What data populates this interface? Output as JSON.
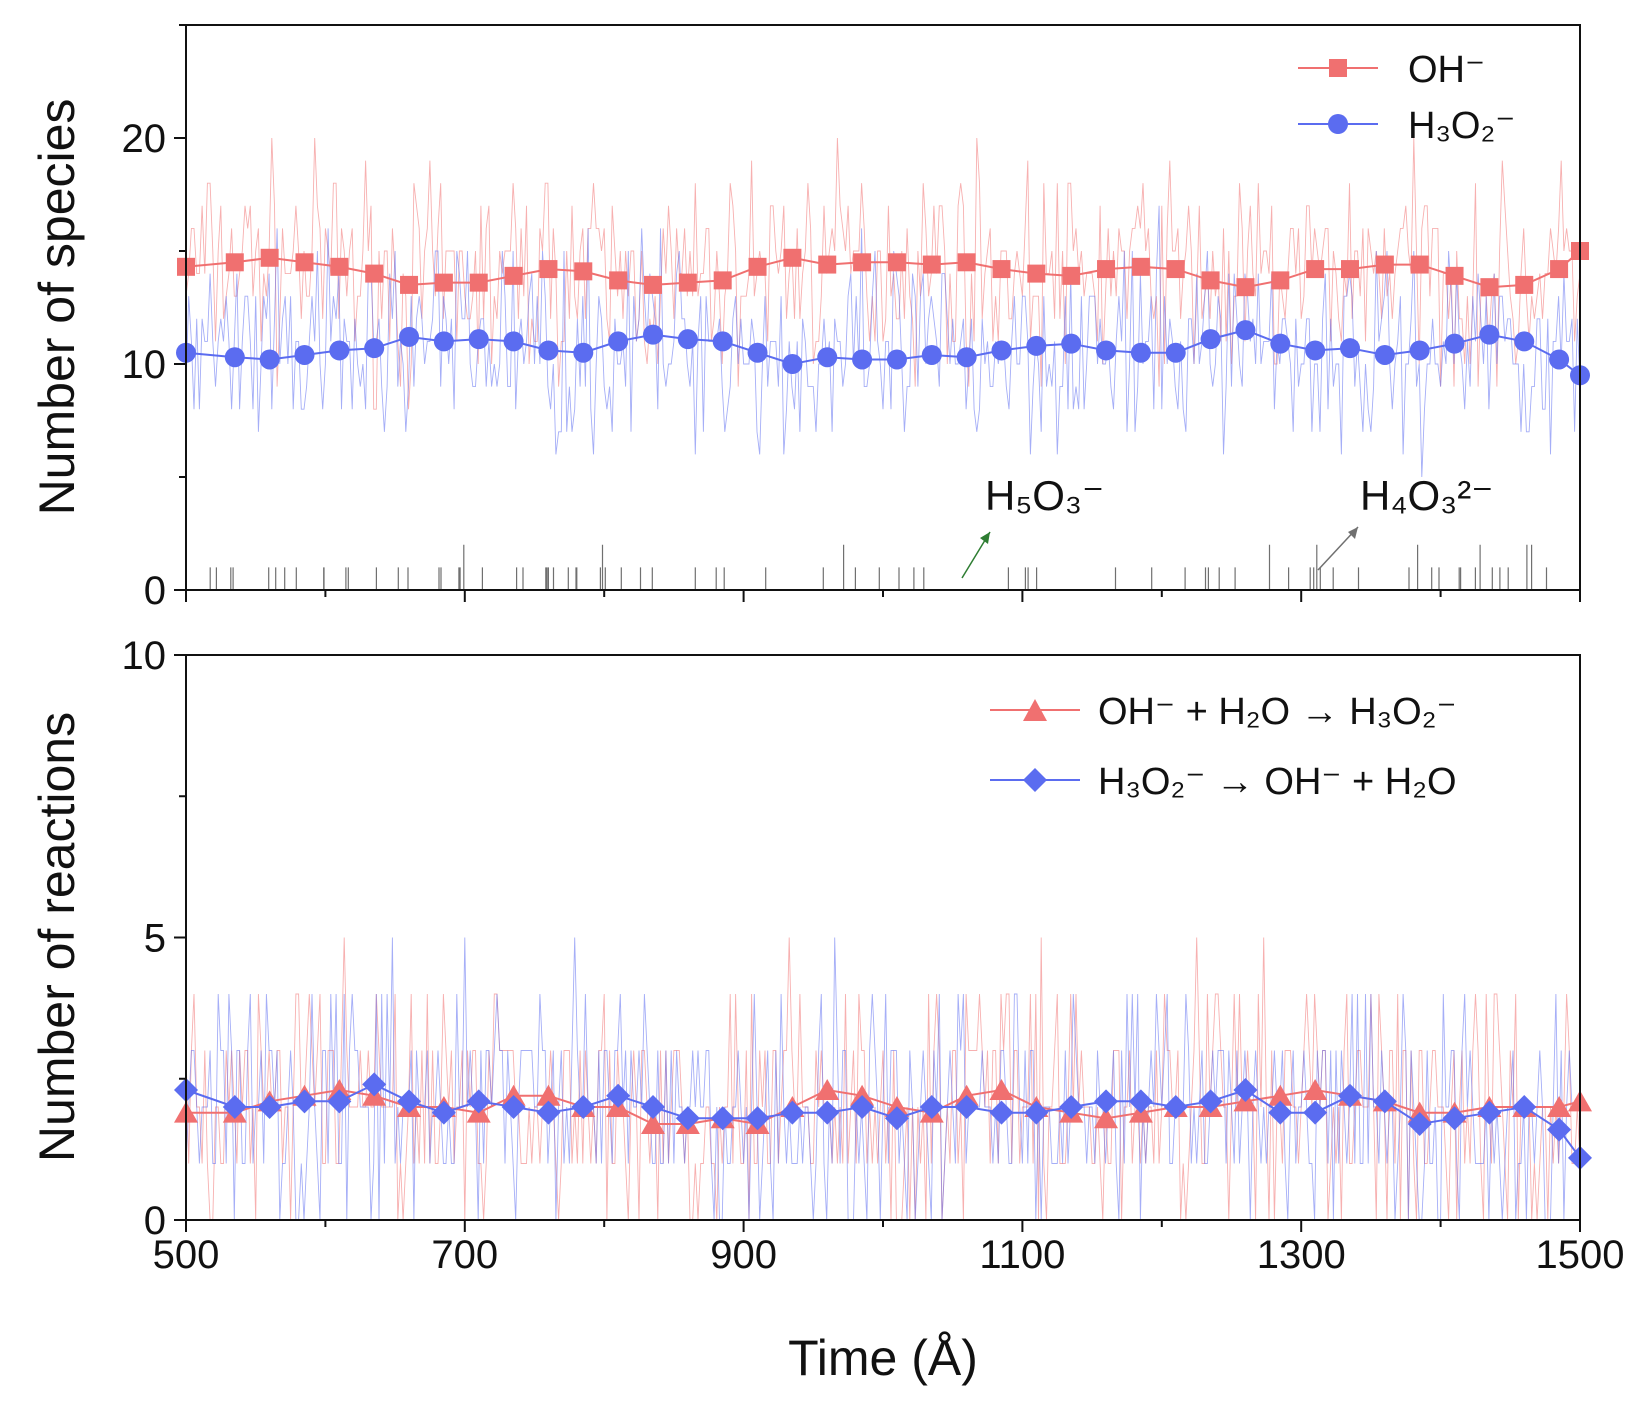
{
  "colors": {
    "oh": "#f07070",
    "h3o2": "#5b6cf0",
    "h5o3": "#2e7d32",
    "h4o3": "#707070",
    "axis": "#111111"
  },
  "xaxis": {
    "label": "Time (Å)",
    "range": [
      500,
      1500
    ],
    "ticks": [
      "500",
      "700",
      "900",
      "1100",
      "1300",
      "1500"
    ]
  },
  "annotations": {
    "h5o3": "H₅O₃⁻",
    "h4o3": "H₄O₃²⁻"
  },
  "chart_data": [
    {
      "type": "line",
      "ylabel": "Number of species",
      "ylim": [
        0,
        25
      ],
      "yticks": [
        "0",
        "10",
        "20"
      ],
      "legend": "top-right",
      "series": [
        {
          "name": "OH⁻",
          "marker": "square",
          "x": [
            500,
            535,
            560,
            585,
            610,
            635,
            660,
            685,
            710,
            735,
            760,
            785,
            810,
            835,
            860,
            885,
            910,
            935,
            960,
            985,
            1010,
            1035,
            1060,
            1085,
            1110,
            1135,
            1160,
            1185,
            1210,
            1235,
            1260,
            1285,
            1310,
            1335,
            1360,
            1385,
            1410,
            1435,
            1460,
            1485,
            1500
          ],
          "values": [
            14.3,
            14.5,
            14.7,
            14.5,
            14.3,
            14.0,
            13.5,
            13.6,
            13.6,
            13.9,
            14.2,
            14.1,
            13.7,
            13.5,
            13.6,
            13.7,
            14.3,
            14.7,
            14.4,
            14.5,
            14.5,
            14.4,
            14.5,
            14.2,
            14.0,
            13.9,
            14.2,
            14.3,
            14.2,
            13.7,
            13.4,
            13.7,
            14.2,
            14.2,
            14.4,
            14.4,
            13.9,
            13.4,
            13.5,
            14.2,
            15.0
          ]
        },
        {
          "name": "H₃O₂⁻",
          "marker": "circle",
          "x": [
            500,
            535,
            560,
            585,
            610,
            635,
            660,
            685,
            710,
            735,
            760,
            785,
            810,
            835,
            860,
            885,
            910,
            935,
            960,
            985,
            1010,
            1035,
            1060,
            1085,
            1110,
            1135,
            1160,
            1185,
            1210,
            1235,
            1260,
            1285,
            1310,
            1335,
            1360,
            1385,
            1410,
            1435,
            1460,
            1485,
            1500
          ],
          "values": [
            10.5,
            10.3,
            10.2,
            10.4,
            10.6,
            10.7,
            11.2,
            11.0,
            11.1,
            11.0,
            10.6,
            10.5,
            11.0,
            11.3,
            11.1,
            11.0,
            10.5,
            10.0,
            10.3,
            10.2,
            10.2,
            10.4,
            10.3,
            10.6,
            10.8,
            10.9,
            10.6,
            10.5,
            10.5,
            11.1,
            11.5,
            10.9,
            10.6,
            10.7,
            10.4,
            10.6,
            10.9,
            11.3,
            11.0,
            10.2,
            9.5
          ]
        },
        {
          "name": "H₅O₃⁻",
          "marker": "none",
          "x": [
            500,
            1500
          ],
          "values": [
            0,
            0
          ]
        },
        {
          "name": "H₄O₃²⁻",
          "marker": "none",
          "x": [
            500,
            1500
          ],
          "values": [
            0,
            0
          ]
        }
      ]
    },
    {
      "type": "line",
      "ylabel": "Number of reactions",
      "ylim": [
        0,
        10
      ],
      "yticks": [
        "0",
        "5",
        "10"
      ],
      "legend": "top-right",
      "series": [
        {
          "name": "OH⁻ + H₂O → H₃O₂⁻",
          "marker": "triangle",
          "x": [
            500,
            535,
            560,
            585,
            610,
            635,
            660,
            685,
            710,
            735,
            760,
            785,
            810,
            835,
            860,
            885,
            910,
            935,
            960,
            985,
            1010,
            1035,
            1060,
            1085,
            1110,
            1135,
            1160,
            1185,
            1210,
            1235,
            1260,
            1285,
            1310,
            1335,
            1360,
            1385,
            1410,
            1435,
            1460,
            1485,
            1500
          ],
          "values": [
            1.9,
            1.9,
            2.1,
            2.2,
            2.3,
            2.2,
            2.0,
            2.0,
            1.9,
            2.2,
            2.2,
            2.0,
            2.0,
            1.7,
            1.7,
            1.8,
            1.7,
            2.0,
            2.3,
            2.2,
            2.0,
            1.9,
            2.2,
            2.3,
            2.0,
            1.9,
            1.8,
            1.9,
            2.0,
            2.0,
            2.1,
            2.2,
            2.3,
            2.2,
            2.1,
            1.9,
            1.9,
            2.0,
            2.0,
            2.0,
            2.1
          ]
        },
        {
          "name": "H₃O₂⁻ → OH⁻ + H₂O",
          "marker": "diamond",
          "x": [
            500,
            535,
            560,
            585,
            610,
            635,
            660,
            685,
            710,
            735,
            760,
            785,
            810,
            835,
            860,
            885,
            910,
            935,
            960,
            985,
            1010,
            1035,
            1060,
            1085,
            1110,
            1135,
            1160,
            1185,
            1210,
            1235,
            1260,
            1285,
            1310,
            1335,
            1360,
            1385,
            1410,
            1435,
            1460,
            1485,
            1500
          ],
          "values": [
            2.3,
            2.0,
            2.0,
            2.1,
            2.1,
            2.4,
            2.1,
            1.9,
            2.1,
            2.0,
            1.9,
            2.0,
            2.2,
            2.0,
            1.8,
            1.8,
            1.8,
            1.9,
            1.9,
            2.0,
            1.8,
            2.0,
            2.0,
            1.9,
            1.9,
            2.0,
            2.1,
            2.1,
            2.0,
            2.1,
            2.3,
            1.9,
            1.9,
            2.2,
            2.1,
            1.7,
            1.8,
            1.9,
            2.0,
            1.6,
            1.1
          ]
        }
      ]
    }
  ]
}
